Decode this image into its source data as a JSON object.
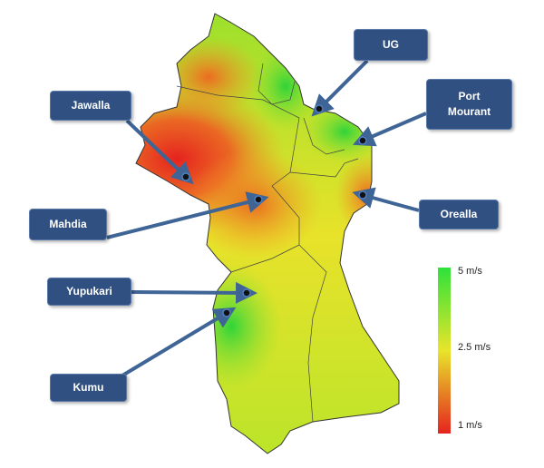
{
  "sites": [
    {
      "label": "UG"
    },
    {
      "label": "Port Mourant"
    },
    {
      "label": "Jawalla"
    },
    {
      "label": "Mahdia"
    },
    {
      "label": "Orealla"
    },
    {
      "label": "Yupukari"
    },
    {
      "label": "Kumu"
    }
  ],
  "legend": {
    "labels": [
      "5 m/s",
      "2.5 m/s",
      "1 m/s"
    ]
  }
}
